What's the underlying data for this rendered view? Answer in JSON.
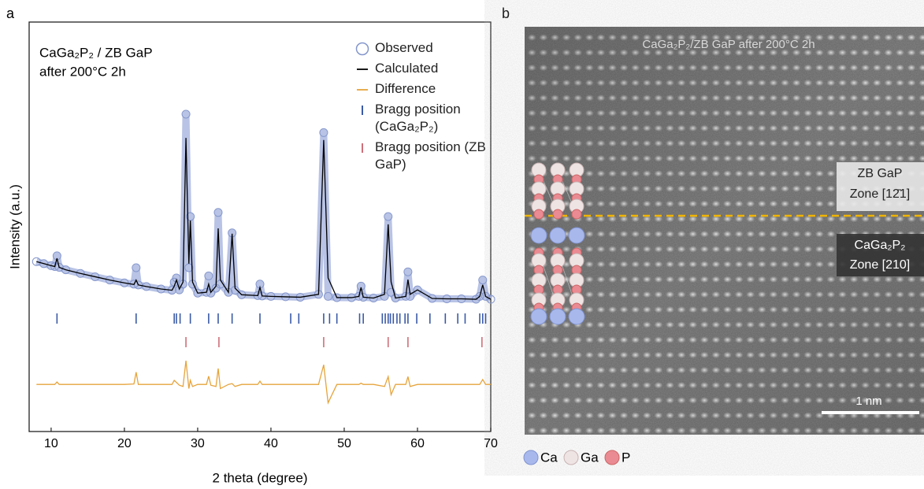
{
  "panel_labels": [
    "a",
    "b"
  ],
  "chart_data": {
    "type": "line",
    "annotation": [
      "CaGa₂P₂ / ZB GaP",
      "after 200°C 2h"
    ],
    "xlabel": "2 theta (degree)",
    "ylabel": "Intensity (a.u.)",
    "xlim": [
      7,
      70
    ],
    "xticks": [
      10,
      20,
      30,
      40,
      50,
      60,
      70
    ],
    "ylim": [
      0,
      100
    ],
    "x": [
      8,
      9,
      10,
      10.5,
      10.8,
      11.1,
      12,
      14,
      16,
      18,
      20,
      21.3,
      21.6,
      21.9,
      23,
      25,
      26.5,
      26.8,
      27.1,
      27.5,
      28.0,
      28.4,
      28.8,
      29.0,
      29.3,
      30,
      31.2,
      31.5,
      31.8,
      32.5,
      32.8,
      33.1,
      34.2,
      34.7,
      35.1,
      36,
      38.2,
      38.5,
      38.8,
      40,
      42,
      44,
      46.5,
      47.2,
      47.8,
      49,
      51,
      52.0,
      52.3,
      52.6,
      54,
      55.5,
      56.0,
      56.4,
      57,
      58.4,
      58.7,
      59.0,
      60.0,
      62,
      64,
      66,
      68,
      68.5,
      68.9,
      69.3,
      70
    ],
    "series": [
      {
        "name": "Observed",
        "style": "marker",
        "color": "#8496cc",
        "values": [
          41.5,
          41.0,
          40.5,
          40.3,
          42.9,
          40.1,
          39.5,
          38.6,
          37.8,
          37.0,
          36.3,
          36.0,
          40.0,
          35.8,
          35.4,
          34.8,
          34.5,
          36.5,
          37.5,
          34.6,
          36.0,
          77.5,
          40.0,
          52.5,
          36.0,
          33.8,
          34.0,
          38.0,
          33.8,
          35.0,
          53.5,
          36.0,
          34.0,
          48.5,
          34.5,
          33.4,
          33.2,
          36.0,
          33.1,
          33.0,
          32.9,
          32.8,
          33.5,
          73.0,
          33.0,
          32.7,
          32.7,
          33.0,
          35.5,
          32.8,
          32.6,
          33.0,
          52.5,
          34.0,
          32.6,
          33.0,
          39.0,
          33.0,
          34.6,
          32.5,
          32.4,
          32.4,
          32.3,
          33.0,
          37.0,
          33.0,
          32.3
        ]
      },
      {
        "name": "Calculated",
        "style": "line",
        "color": "#000000",
        "values": [
          41.5,
          41.0,
          40.5,
          40.3,
          42.3,
          40.1,
          39.5,
          38.6,
          37.8,
          37.0,
          36.3,
          35.9,
          37.0,
          35.8,
          35.4,
          34.8,
          34.5,
          35.5,
          37.0,
          34.8,
          36.5,
          71.7,
          41.0,
          51.5,
          36.5,
          33.8,
          34.0,
          36.0,
          34.0,
          35.5,
          49.6,
          37.0,
          34.0,
          48.3,
          35.0,
          33.4,
          33.2,
          35.2,
          33.1,
          33.0,
          32.9,
          32.8,
          33.5,
          71.2,
          37.5,
          32.7,
          32.7,
          33.0,
          35.2,
          32.8,
          32.6,
          33.5,
          50.6,
          36.5,
          32.6,
          33.0,
          37.1,
          33.5,
          34.6,
          32.5,
          32.4,
          32.4,
          32.3,
          33.0,
          35.8,
          33.0,
          32.3
        ]
      },
      {
        "name": "Difference",
        "style": "line",
        "color": "#e6a43c",
        "values": [
          11.5,
          11.5,
          11.5,
          11.5,
          12.1,
          11.5,
          11.5,
          11.5,
          11.5,
          11.5,
          11.5,
          11.6,
          14.5,
          11.5,
          11.5,
          11.5,
          11.5,
          12.5,
          12.0,
          11.3,
          11.0,
          17.3,
          10.5,
          12.5,
          11.0,
          11.5,
          11.5,
          13.5,
          11.3,
          11.0,
          15.4,
          10.5,
          11.5,
          11.7,
          11.0,
          11.5,
          11.5,
          12.3,
          11.5,
          11.5,
          11.5,
          11.5,
          11.5,
          16.3,
          7.0,
          11.5,
          11.5,
          11.5,
          11.8,
          11.5,
          11.5,
          11.0,
          13.4,
          9.0,
          11.5,
          11.5,
          13.4,
          11.0,
          11.5,
          11.5,
          11.5,
          11.5,
          11.5,
          11.5,
          12.7,
          11.5,
          11.5
        ]
      },
      {
        "name": "Bragg position (CaGa₂P₂)",
        "style": "tick",
        "color": "#3a5aa6",
        "x": [
          10.8,
          21.6,
          26.8,
          27.1,
          27.6,
          29.0,
          31.5,
          32.8,
          34.7,
          38.5,
          42.7,
          43.8,
          47.2,
          48.0,
          49.0,
          52.1,
          52.6,
          55.2,
          55.6,
          56.0,
          56.3,
          56.7,
          57.2,
          57.6,
          58.3,
          58.7,
          59.9,
          61.7,
          63.8,
          65.5,
          66.5,
          68.5,
          68.9,
          69.3
        ]
      },
      {
        "name": "Bragg position (ZB GaP)",
        "style": "tick",
        "color": "#cf6f79",
        "x": [
          28.4,
          32.9,
          47.2,
          56.0,
          58.7,
          68.8
        ]
      }
    ]
  },
  "image_panel": {
    "title": "CaGa₂P₂/ZB GaP after 200°C 2h",
    "upper_label": [
      "ZB GaP",
      "Zone [12̄1]"
    ],
    "lower_label": [
      "CaGa₂P₂",
      "Zone [210]"
    ],
    "scale_bar": "1 nm",
    "atom_legend": [
      "Ca",
      "Ga",
      "P"
    ]
  }
}
